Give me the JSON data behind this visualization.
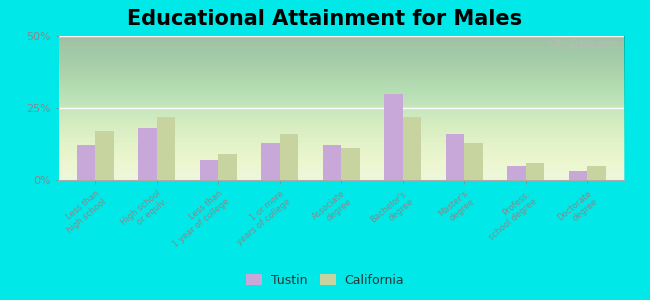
{
  "title": "Educational Attainment for Males",
  "categories": [
    "Less than\nhigh school",
    "High school\nor equiv.",
    "Less than\n1 year of college",
    "1 or more\nyears of college",
    "Associate\ndegree",
    "Bachelor's\ndegree",
    "Master's\ndegree",
    "Profess.\nschool degree",
    "Doctorate\ndegree"
  ],
  "tustin": [
    12,
    18,
    7,
    13,
    12,
    30,
    16,
    5,
    3
  ],
  "california": [
    17,
    22,
    9,
    16,
    11,
    22,
    13,
    6,
    5
  ],
  "tustin_color": "#c8a8d8",
  "california_color": "#c8d4a0",
  "ylim": [
    0,
    50
  ],
  "yticks": [
    0,
    25,
    50
  ],
  "ytick_labels": [
    "0%",
    "25%",
    "50%"
  ],
  "bg_top_color": "#f0f5e0",
  "bg_bottom_color": "#d8ecc0",
  "outer_background": "#00e8e8",
  "grid_color": "#e0e8d0",
  "title_fontsize": 15,
  "bar_width": 0.3,
  "watermark": "City-Data.com",
  "legend_tustin": "Tustin",
  "legend_california": "California"
}
